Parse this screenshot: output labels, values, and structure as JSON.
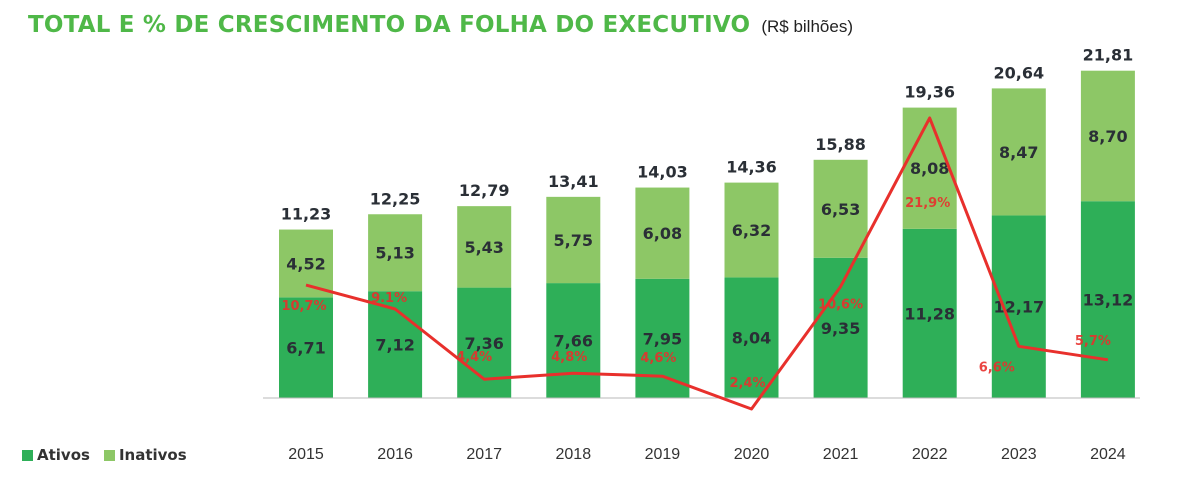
{
  "header": {
    "title": "TOTAL E % DE CRESCIMENTO DA FOLHA DO EXECUTIVO",
    "subtitle": "(R$ bilhões)"
  },
  "colors": {
    "title": "#4fb848",
    "ativos": "#2eaf58",
    "inativos": "#8dc766",
    "growth_line": "#e8302c",
    "growth_label": "#e8302c",
    "value_label": "#2a2f36"
  },
  "legend": [
    {
      "name": "Ativos",
      "color": "#2eaf58"
    },
    {
      "name": "Inativos",
      "color": "#8dc766"
    }
  ],
  "chart_data": {
    "type": "bar",
    "stacked": true,
    "categories": [
      "2015",
      "2016",
      "2017",
      "2018",
      "2019",
      "2020",
      "2021",
      "2022",
      "2023",
      "2024"
    ],
    "series": [
      {
        "name": "Ativos",
        "values": [
          6.71,
          7.12,
          7.36,
          7.66,
          7.95,
          8.04,
          9.35,
          11.28,
          12.17,
          13.12
        ]
      },
      {
        "name": "Inativos",
        "values": [
          4.52,
          5.13,
          5.43,
          5.75,
          6.08,
          6.32,
          6.53,
          8.08,
          8.47,
          8.7
        ]
      }
    ],
    "totals": [
      11.23,
      12.25,
      12.79,
      13.41,
      14.03,
      14.36,
      15.88,
      19.36,
      20.64,
      21.81
    ],
    "labels": {
      "ativos": [
        "6,71",
        "7,12",
        "7,36",
        "7,66",
        "7,95",
        "8,04",
        "9,35",
        "11,28",
        "12,17",
        "13,12"
      ],
      "inativos": [
        "4,52",
        "5,13",
        "5,43",
        "5,75",
        "6,08",
        "6,32",
        "6,53",
        "8,08",
        "8,47",
        "8,70"
      ],
      "totals": [
        "11,23",
        "12,25",
        "12,79",
        "13,41",
        "14,03",
        "14,36",
        "15,88",
        "19,36",
        "20,64",
        "21,81"
      ]
    },
    "growth": {
      "values": [
        10.7,
        9.1,
        4.4,
        4.8,
        4.6,
        2.4,
        10.6,
        21.9,
        6.6,
        5.7
      ],
      "labels": [
        "10,7%",
        "9.1%",
        "4,4%",
        "4,8%",
        "4,6%",
        "2,4%",
        "10,6%",
        "21,9%",
        "6,6%",
        "5,7%"
      ]
    },
    "xlabel": "",
    "ylabel": "",
    "grid": false,
    "legend_position": "bottom-left"
  }
}
